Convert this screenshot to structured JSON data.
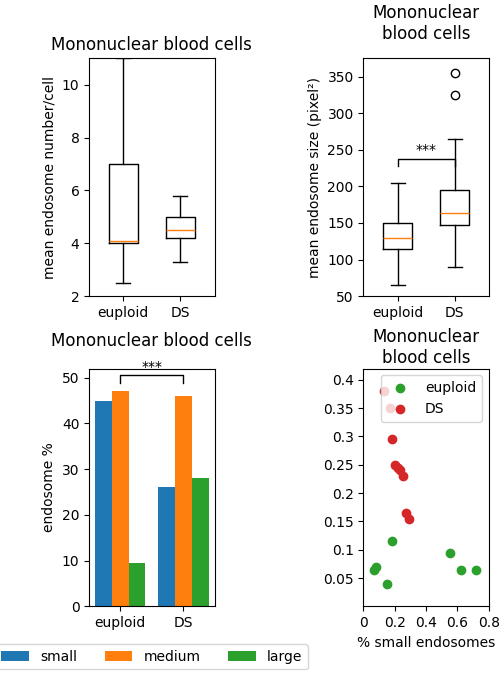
{
  "chart_data": [
    {
      "type": "box",
      "title": "Mononuclear blood cells",
      "y_label": "mean endosome number/cell",
      "categories": [
        "euploid",
        "DS"
      ],
      "boxes": [
        {
          "median": 4.1,
          "q1": 4.0,
          "q3": 7.0,
          "whislo": 2.5,
          "whishi": 11.0,
          "fliers": []
        },
        {
          "median": 4.5,
          "q1": 4.2,
          "q3": 5.0,
          "whislo": 3.3,
          "whishi": 5.8,
          "fliers": []
        }
      ],
      "ylim": [
        2,
        11
      ],
      "yticks": [
        2,
        4,
        6,
        8,
        10
      ]
    },
    {
      "type": "box",
      "title": "Mononuclear blood cells",
      "y_label": "mean endosome size (pixel²)",
      "categories": [
        "euploid",
        "DS"
      ],
      "boxes": [
        {
          "median": 130,
          "q1": 115,
          "q3": 150,
          "whislo": 65,
          "whishi": 205,
          "fliers": []
        },
        {
          "median": 163,
          "q1": 147,
          "q3": 195,
          "whislo": 90,
          "whishi": 265,
          "fliers": [
            325,
            355
          ]
        }
      ],
      "ylim": [
        50,
        375
      ],
      "yticks": [
        50,
        100,
        150,
        200,
        250,
        300,
        350
      ],
      "annotations": [
        {
          "text": "***",
          "between": [
            "euploid",
            "DS"
          ],
          "y": 238
        }
      ]
    },
    {
      "type": "bar",
      "title": "Mononuclear blood cells",
      "y_label": "endosome %",
      "categories": [
        "euploid",
        "DS"
      ],
      "series": [
        {
          "name": "small",
          "values": [
            45,
            26
          ]
        },
        {
          "name": "medium",
          "values": [
            47,
            46
          ]
        },
        {
          "name": "large",
          "values": [
            9.5,
            28
          ]
        }
      ],
      "ylim": [
        0,
        52
      ],
      "yticks": [
        0,
        10,
        20,
        30,
        40,
        50
      ],
      "legend": "bottom",
      "annotations": [
        {
          "text": "***",
          "between": [
            "euploid",
            "DS"
          ],
          "y": 50.5
        }
      ]
    },
    {
      "type": "scatter",
      "title": "Mononuclear blood cells",
      "x_label": "% small endosomes",
      "series": [
        {
          "name": "euploid",
          "color": "#2ca02c",
          "x": [
            0.07,
            0.08,
            0.15,
            0.18,
            0.55,
            0.62,
            0.72
          ],
          "y": [
            0.065,
            0.07,
            0.04,
            0.115,
            0.095,
            0.065,
            0.065
          ]
        },
        {
          "name": "DS",
          "color": "#d62728",
          "x": [
            0.13,
            0.17,
            0.18,
            0.2,
            0.22,
            0.23,
            0.25,
            0.27,
            0.29
          ],
          "y": [
            0.38,
            0.35,
            0.295,
            0.25,
            0.245,
            0.24,
            0.23,
            0.165,
            0.155
          ]
        }
      ],
      "xlim": [
        0,
        0.8
      ],
      "xticks": [
        0,
        0.2,
        0.4,
        0.6,
        0.8
      ],
      "ylim": [
        0,
        0.42
      ],
      "yticks": [
        0.05,
        0.1,
        0.15,
        0.2,
        0.25,
        0.3,
        0.35,
        0.4
      ],
      "legend": "upper right"
    }
  ]
}
